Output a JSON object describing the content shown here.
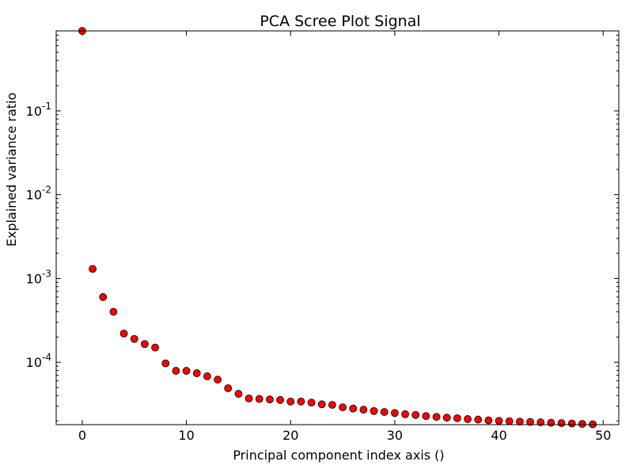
{
  "chart_data": {
    "type": "scatter",
    "title": "PCA Scree Plot Signal",
    "xlabel": "Principal component index axis ()",
    "ylabel": "Explained variance ratio",
    "yscale": "log",
    "xlim": [
      -2.5,
      51.5
    ],
    "ylim": [
      1.8e-05,
      0.9
    ],
    "xticks": [
      0,
      10,
      20,
      30,
      40,
      50
    ],
    "xtick_labels": [
      "0",
      "10",
      "20",
      "30",
      "40",
      "50"
    ],
    "yticks": [
      0.1,
      0.01,
      0.001,
      0.0001
    ],
    "ytick_labels": [
      {
        "base": "10",
        "exp": "-1"
      },
      {
        "base": "10",
        "exp": "-2"
      },
      {
        "base": "10",
        "exp": "-3"
      },
      {
        "base": "10",
        "exp": "-4"
      }
    ],
    "grid": false,
    "legend": "none",
    "marker_color": "#ff0000",
    "marker_edge_color": "#000000",
    "x": [
      0,
      1,
      2,
      3,
      4,
      5,
      6,
      7,
      8,
      9,
      10,
      11,
      12,
      13,
      14,
      15,
      16,
      17,
      18,
      19,
      20,
      21,
      22,
      23,
      24,
      25,
      26,
      27,
      28,
      29,
      30,
      31,
      32,
      33,
      34,
      35,
      36,
      37,
      38,
      39,
      40,
      41,
      42,
      43,
      44,
      45,
      46,
      47,
      48,
      49
    ],
    "y": [
      0.9,
      0.0013,
      0.0006,
      0.0004,
      0.00022,
      0.00019,
      0.000165,
      0.00015,
      9.7e-05,
      7.9e-05,
      7.9e-05,
      7.4e-05,
      6.8e-05,
      6.2e-05,
      4.9e-05,
      4.2e-05,
      3.7e-05,
      3.65e-05,
      3.6e-05,
      3.55e-05,
      3.4e-05,
      3.4e-05,
      3.3e-05,
      3.15e-05,
      3.1e-05,
      2.9e-05,
      2.8e-05,
      2.72e-05,
      2.62e-05,
      2.55e-05,
      2.48e-05,
      2.4e-05,
      2.35e-05,
      2.28e-05,
      2.23e-05,
      2.18e-05,
      2.15e-05,
      2.1e-05,
      2.07e-05,
      2.03e-05,
      2e-05,
      1.98e-05,
      1.96e-05,
      1.94e-05,
      1.92e-05,
      1.9e-05,
      1.88e-05,
      1.86e-05,
      1.84e-05,
      1.82e-05
    ]
  }
}
